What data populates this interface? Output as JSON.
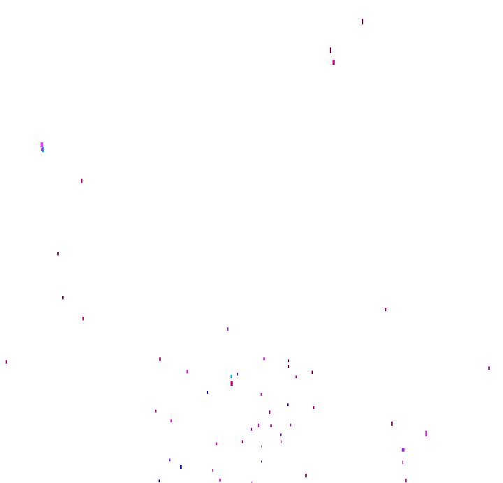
{
  "background_color": "#ffffff",
  "palette": {
    "dark_magenta": "#80004f",
    "magenta": "#c00080",
    "hot_pink": "#d0008a",
    "bright_magenta": "#ff00ff",
    "pink": "#ff00c0",
    "violet": "#a020ff",
    "indigo": "#6020ff",
    "blue": "#0000d0",
    "cyan": "#00b0ff",
    "orchid": "#e040ff"
  }
}
